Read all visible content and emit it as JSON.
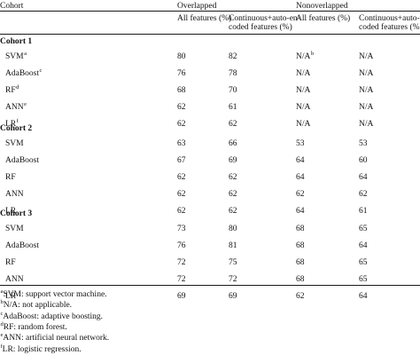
{
  "header": {
    "cohort": "Cohort",
    "overlapped": "Overlapped",
    "nonoverlapped": "Nonoverlapped",
    "overlapped_all": "All features (%)",
    "overlapped_cont_1": "Continuous+auto-en-",
    "overlapped_cont_2": "coded features (%)",
    "nonoverlapped_all": "All features (%)",
    "nonoverlapped_cont_1": "Continuous+auto-en-",
    "nonoverlapped_cont_2": "coded features (%)"
  },
  "groups": [
    {
      "title": "Cohort 1",
      "rows": [
        {
          "model": "SVM",
          "sup": "a",
          "o_all": "80",
          "o_cont": "82",
          "n_all": "N/A",
          "n_all_sup": "b",
          "n_cont": "N/A"
        },
        {
          "model": "AdaBoost",
          "sup": "c",
          "o_all": "76",
          "o_cont": "78",
          "n_all": "N/A",
          "n_all_sup": "",
          "n_cont": "N/A"
        },
        {
          "model": "RF",
          "sup": "d",
          "o_all": "68",
          "o_cont": "70",
          "n_all": "N/A",
          "n_all_sup": "",
          "n_cont": "N/A"
        },
        {
          "model": "ANN",
          "sup": "e",
          "o_all": "62",
          "o_cont": "61",
          "n_all": "N/A",
          "n_all_sup": "",
          "n_cont": "N/A"
        },
        {
          "model": "LR",
          "sup": "f",
          "o_all": "62",
          "o_cont": "62",
          "n_all": "N/A",
          "n_all_sup": "",
          "n_cont": "N/A"
        }
      ]
    },
    {
      "title": "Cohort 2",
      "rows": [
        {
          "model": "SVM",
          "sup": "",
          "o_all": "63",
          "o_cont": "66",
          "n_all": "53",
          "n_all_sup": "",
          "n_cont": "53"
        },
        {
          "model": "AdaBoost",
          "sup": "",
          "o_all": "67",
          "o_cont": "69",
          "n_all": "64",
          "n_all_sup": "",
          "n_cont": "60"
        },
        {
          "model": "RF",
          "sup": "",
          "o_all": "62",
          "o_cont": "62",
          "n_all": "64",
          "n_all_sup": "",
          "n_cont": "64"
        },
        {
          "model": "ANN",
          "sup": "",
          "o_all": "62",
          "o_cont": "62",
          "n_all": "62",
          "n_all_sup": "",
          "n_cont": "62"
        },
        {
          "model": "LR",
          "sup": "",
          "o_all": "62",
          "o_cont": "62",
          "n_all": "64",
          "n_all_sup": "",
          "n_cont": "61"
        }
      ]
    },
    {
      "title": "Cohort 3",
      "rows": [
        {
          "model": "SVM",
          "sup": "",
          "o_all": "73",
          "o_cont": "80",
          "n_all": "68",
          "n_all_sup": "",
          "n_cont": "65"
        },
        {
          "model": "AdaBoost",
          "sup": "",
          "o_all": "76",
          "o_cont": "81",
          "n_all": "68",
          "n_all_sup": "",
          "n_cont": "64"
        },
        {
          "model": "RF",
          "sup": "",
          "o_all": "72",
          "o_cont": "75",
          "n_all": "68",
          "n_all_sup": "",
          "n_cont": "65"
        },
        {
          "model": "ANN",
          "sup": "",
          "o_all": "72",
          "o_cont": "72",
          "n_all": "68",
          "n_all_sup": "",
          "n_cont": "65"
        },
        {
          "model": "LR",
          "sup": "",
          "o_all": "69",
          "o_cont": "69",
          "n_all": "62",
          "n_all_sup": "",
          "n_cont": "64"
        }
      ]
    }
  ],
  "footnotes": [
    {
      "mark": "a",
      "text": "SVM: support vector machine."
    },
    {
      "mark": "b",
      "text": "N/A: not applicable."
    },
    {
      "mark": "c",
      "text": "AdaBoost: adaptive boosting."
    },
    {
      "mark": "d",
      "text": "RF: random forest."
    },
    {
      "mark": "e",
      "text": "ANN: artificial neural network."
    },
    {
      "mark": "f",
      "text": "LR: logistic regression."
    }
  ]
}
